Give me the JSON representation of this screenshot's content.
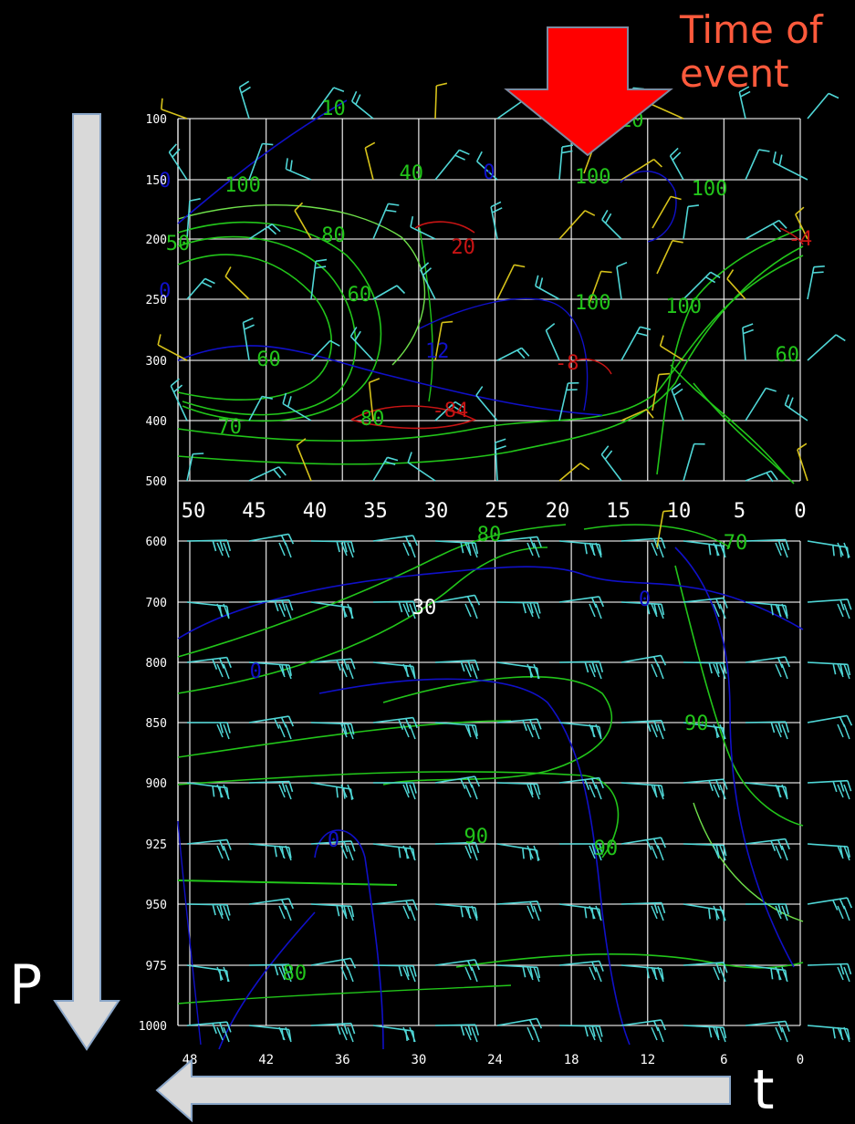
{
  "annotations": {
    "event_label": "Time of\nevent",
    "pressure_label": "P",
    "time_label": "t"
  },
  "colors": {
    "background": "#000000",
    "grid": "#ffffff",
    "axis_text": "#ffffff",
    "event_arrow": "#ff0000",
    "event_text": "#ff5a3c",
    "axis_arrow": "#d9d9d9",
    "contour_green": "#22c51a",
    "contour_bright_green": "#6fe04a",
    "contour_blue": "#1010c8",
    "contour_red": "#c81414",
    "barb_cyan": "#4fd6d6",
    "barb_yellow": "#d6c21a"
  },
  "chart_data": {
    "type": "time-height cross-section",
    "y_axis": {
      "label": "P",
      "direction": "pressure increasing downward",
      "ticks": [
        "100",
        "150",
        "200",
        "250",
        "300",
        "400",
        "500",
        "600",
        "700",
        "800",
        "850",
        "900",
        "925",
        "950",
        "975",
        "1000"
      ]
    },
    "x_axis": {
      "label": "t",
      "direction": "time increasing leftward",
      "ticks": [
        "48",
        "42",
        "36",
        "30",
        "24",
        "18",
        "12",
        "6",
        "0"
      ]
    },
    "inner_axis_ticks": [
      "50",
      "45",
      "40",
      "35",
      "30",
      "25",
      "20",
      "15",
      "10",
      "5",
      "0"
    ],
    "event_time_marker": 18,
    "contour_labels": [
      {
        "text": "10",
        "color": "green",
        "p": "100",
        "t": 36
      },
      {
        "text": "10",
        "color": "green",
        "p": "100",
        "t": 13
      },
      {
        "text": "40",
        "color": "green",
        "p": "150",
        "t": 30
      },
      {
        "text": "100",
        "color": "green",
        "p": "150",
        "t": 43
      },
      {
        "text": "100",
        "color": "green",
        "p": "150",
        "t": 16
      },
      {
        "text": "100",
        "color": "green",
        "p": "150",
        "t": 7
      },
      {
        "text": "0",
        "color": "blue",
        "p": "150",
        "t": 49
      },
      {
        "text": "0",
        "color": "blue",
        "p": "150",
        "t": 24
      },
      {
        "text": "50",
        "color": "green",
        "p": "200",
        "t": 48
      },
      {
        "text": "80",
        "color": "green",
        "p": "200",
        "t": 36
      },
      {
        "text": "20",
        "color": "red",
        "p": "200",
        "t": 26
      },
      {
        "text": "-4",
        "color": "red",
        "p": "200",
        "t": 0
      },
      {
        "text": "0",
        "color": "blue",
        "p": "250",
        "t": 49
      },
      {
        "text": "100",
        "color": "green",
        "p": "250",
        "t": 16
      },
      {
        "text": "60",
        "color": "green",
        "p": "250",
        "t": 34
      },
      {
        "text": "100",
        "color": "green",
        "p": "250",
        "t": 9
      },
      {
        "text": "60",
        "color": "green",
        "p": "300",
        "t": 41
      },
      {
        "text": "12",
        "color": "blue",
        "p": "300",
        "t": 28
      },
      {
        "text": "-8",
        "color": "red",
        "p": "300",
        "t": 18
      },
      {
        "text": "60",
        "color": "green",
        "p": "300",
        "t": 1
      },
      {
        "text": "70",
        "color": "green",
        "p": "400",
        "t": 44
      },
      {
        "text": "80",
        "color": "green",
        "p": "400",
        "t": 33
      },
      {
        "text": "-84",
        "color": "red",
        "p": "400",
        "t": 27
      },
      {
        "text": "70",
        "color": "green",
        "p": "600",
        "t": 5
      },
      {
        "text": "80",
        "color": "green",
        "p": "600",
        "t": 24
      },
      {
        "text": "30",
        "color": "white",
        "p": "700",
        "t": 29
      },
      {
        "text": "0",
        "color": "blue",
        "p": "700",
        "t": 12
      },
      {
        "text": "0",
        "color": "blue",
        "p": "800",
        "t": 42
      },
      {
        "text": "90",
        "color": "green",
        "p": "850",
        "t": 8
      },
      {
        "text": "90",
        "color": "green",
        "p": "925",
        "t": 25
      },
      {
        "text": "90",
        "color": "green",
        "p": "925",
        "t": 15
      },
      {
        "text": "0",
        "color": "blue",
        "p": "925",
        "t": 36
      },
      {
        "text": "80",
        "color": "green",
        "p": "975",
        "t": 39
      }
    ]
  }
}
